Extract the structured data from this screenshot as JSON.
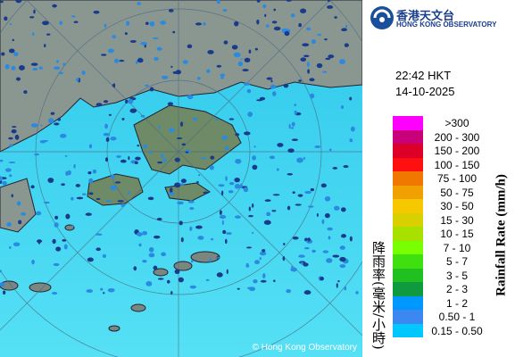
{
  "header": {
    "logo_zh": "香港天文台",
    "logo_en": "HONG KONG OBSERVATORY"
  },
  "timestamp": {
    "time": "22:42 HKT",
    "date": "14-10-2025"
  },
  "legend": {
    "title_zh": "降雨率(毫米/小時)",
    "title_en": "Rainfall Rate (mm/h)",
    "items": [
      {
        "label": ">300",
        "color": "#ff00ff"
      },
      {
        "label": "200 - 300",
        "color": "#c8007a"
      },
      {
        "label": "150 - 200",
        "color": "#dc0028"
      },
      {
        "label": "100 - 150",
        "color": "#ff1010"
      },
      {
        "label": "75 - 100",
        "color": "#f07800"
      },
      {
        "label": "50 - 75",
        "color": "#f0a000"
      },
      {
        "label": "30 - 50",
        "color": "#f5c800"
      },
      {
        "label": "15 - 30",
        "color": "#d8d000"
      },
      {
        "label": "10 - 15",
        "color": "#a8e000"
      },
      {
        "label": "7 - 10",
        "color": "#78ff00"
      },
      {
        "label": "5 - 7",
        "color": "#40e010"
      },
      {
        "label": "3 - 5",
        "color": "#20c020"
      },
      {
        "label": "2 - 3",
        "color": "#109a40"
      },
      {
        "label": "1 - 2",
        "color": "#0098ff"
      },
      {
        "label": "0.50 - 1",
        "color": "#3a88f0"
      },
      {
        "label": "0.15 - 0.50",
        "color": "#00c8ff"
      }
    ]
  },
  "map": {
    "copyright": "© Hong Kong Observatory"
  }
}
